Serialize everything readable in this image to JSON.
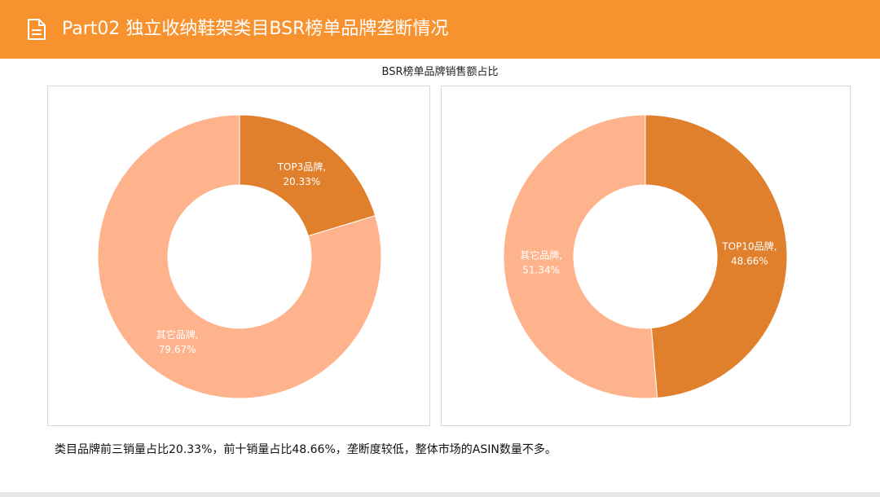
{
  "header": {
    "title": "Part02 独立收纳鞋架类目BSR榜单品牌垄断情况",
    "icon": "document-icon",
    "color": "#f7922f"
  },
  "section_title": "BSR榜单品牌销售额占比",
  "chart_data": [
    {
      "type": "pie",
      "donut": true,
      "title": "",
      "slices": [
        {
          "name": "TOP3品牌",
          "value": 20.33,
          "label_line1": "TOP3品牌,",
          "label_line2": "20.33%",
          "color": "#e07f2c"
        },
        {
          "name": "其它品牌",
          "value": 79.67,
          "label_line1": "其它品牌,",
          "label_line2": "79.67%",
          "color": "#ffb38c"
        }
      ]
    },
    {
      "type": "pie",
      "donut": true,
      "title": "",
      "slices": [
        {
          "name": "TOP10品牌",
          "value": 48.66,
          "label_line1": "TOP10品牌,",
          "label_line2": "48.66%",
          "color": "#e07f2c"
        },
        {
          "name": "其它品牌",
          "value": 51.34,
          "label_line1": "其它品牌,",
          "label_line2": "51.34%",
          "color": "#ffb38c"
        }
      ]
    }
  ],
  "footer": {
    "text": "类目品牌前三销量占比20.33%，前十销量占比48.66%，垄断度较低，整体市场的ASIN数量不多。"
  }
}
